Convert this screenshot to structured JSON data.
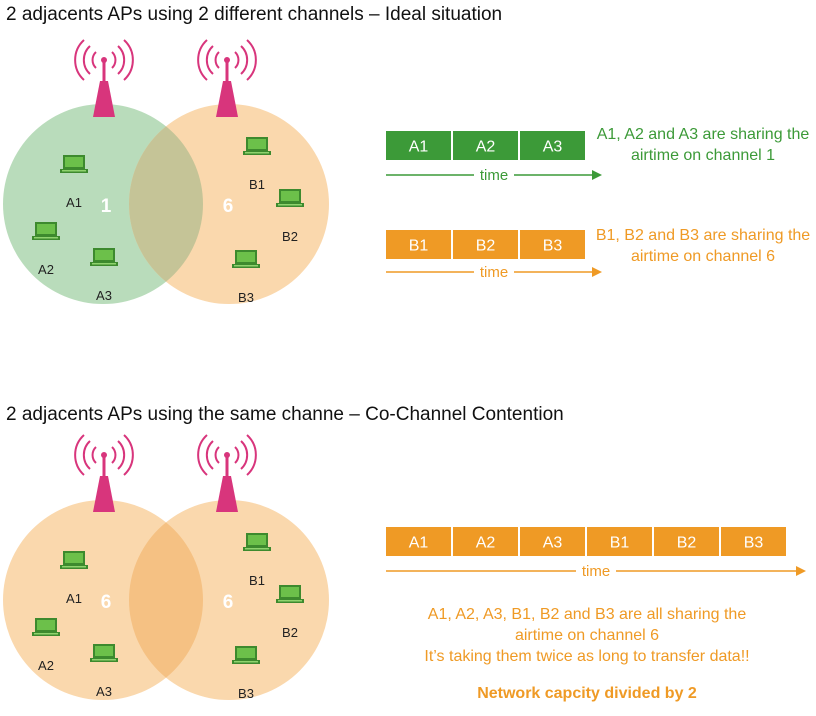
{
  "colors": {
    "green": "#3c9a38",
    "orange": "#ef9a25",
    "magenta": "#d8357c",
    "green_circle": "#b9dcbb",
    "orange_circle": "#fad8ad",
    "overlap_mixed": "#c5c497",
    "overlap_orange": "#f5c183",
    "laptop": "#54a43f"
  },
  "icons": {
    "access_point": "radio-tower-icon",
    "client": "laptop-icon"
  },
  "section1": {
    "heading": "2 adjacents APs using 2 different channels – Ideal situation",
    "cell_left": {
      "channel": "1",
      "clients": [
        "A1",
        "A2",
        "A3"
      ]
    },
    "cell_right": {
      "channel": "6",
      "clients": [
        "B1",
        "B2",
        "B3"
      ]
    },
    "timeline_a": {
      "slots": [
        "A1",
        "A2",
        "A3"
      ],
      "axis_label": "time"
    },
    "timeline_a_caption": "A1, A2 and A3 are sharing the airtime on channel 1",
    "timeline_b": {
      "slots": [
        "B1",
        "B2",
        "B3"
      ],
      "axis_label": "time"
    },
    "timeline_b_caption": "B1, B2 and B3 are sharing the airtime on channel 6"
  },
  "section2": {
    "heading": "2 adjacents APs using the same channe – Co-Channel Contention",
    "cell_left": {
      "channel": "6",
      "clients": [
        "A1",
        "A2",
        "A3"
      ]
    },
    "cell_right": {
      "channel": "6",
      "clients": [
        "B1",
        "B2",
        "B3"
      ]
    },
    "timeline": {
      "slots": [
        "A1",
        "A2",
        "A3",
        "B1",
        "B2",
        "B3"
      ],
      "axis_label": "time"
    },
    "caption_line1": "A1, A2, A3, B1, B2 and B3 are all sharing the",
    "caption_line2": "airtime on channel 6",
    "caption_line3": "It’s taking them twice as long to transfer data!!",
    "conclusion": "Network capcity divided by 2"
  }
}
